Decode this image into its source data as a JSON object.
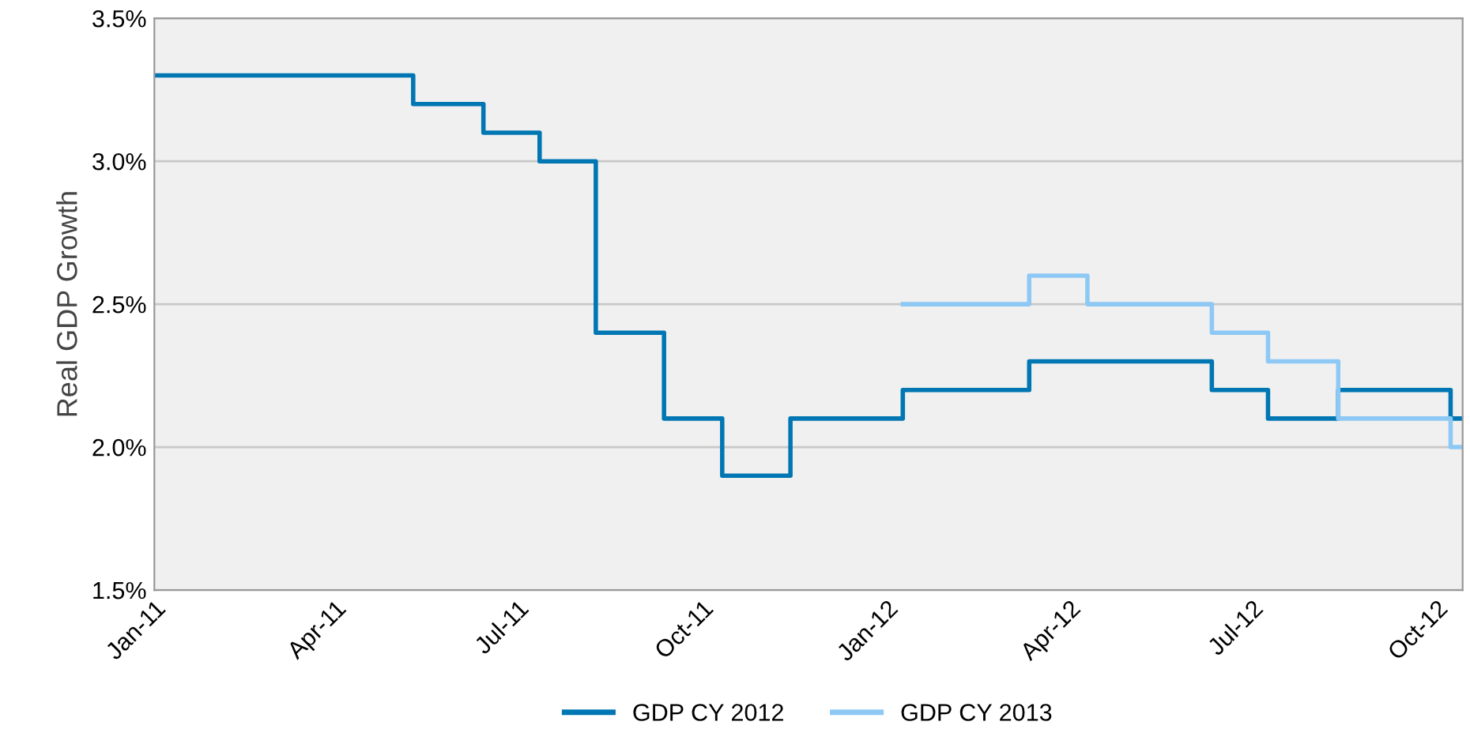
{
  "chart_data": {
    "type": "step",
    "ylabel": "Real GDP Growth",
    "xlim": [
      "2011-01-01",
      "2012-10-14"
    ],
    "xticks": [
      {
        "value": "2011-01-01",
        "label": "Jan-11"
      },
      {
        "value": "2011-04-01",
        "label": "Apr-11"
      },
      {
        "value": "2011-07-01",
        "label": "Jul-11"
      },
      {
        "value": "2011-10-01",
        "label": "Oct-11"
      },
      {
        "value": "2012-01-01",
        "label": "Jan-12"
      },
      {
        "value": "2012-04-01",
        "label": "Apr-12"
      },
      {
        "value": "2012-07-01",
        "label": "Jul-12"
      },
      {
        "value": "2012-10-01",
        "label": "Oct-12"
      }
    ],
    "ylim": [
      1.5,
      3.5
    ],
    "yticks": [
      {
        "value": 1.5,
        "label": "1.5%"
      },
      {
        "value": 2.0,
        "label": "2.0%"
      },
      {
        "value": 2.5,
        "label": "2.5%"
      },
      {
        "value": 3.0,
        "label": "3.0%"
      },
      {
        "value": 3.5,
        "label": "3.5%"
      }
    ],
    "grid": "y",
    "legend": "bottom",
    "line_style": "solid",
    "marker": "none",
    "series": [
      {
        "name": "GDP CY 2012",
        "color": "#0077b3",
        "x": [
          "2011-01-01",
          "2011-05-10",
          "2011-06-14",
          "2011-07-12",
          "2011-08-09",
          "2011-09-12",
          "2011-10-11",
          "2011-11-14",
          "2012-01-09",
          "2012-03-12",
          "2012-06-11",
          "2012-07-09",
          "2012-08-13",
          "2012-10-08",
          "2012-10-14"
        ],
        "values": [
          3.3,
          3.2,
          3.1,
          3.0,
          2.4,
          2.1,
          1.9,
          2.1,
          2.2,
          2.3,
          2.2,
          2.1,
          2.2,
          2.1,
          2.1
        ]
      },
      {
        "name": "GDP CY 2013",
        "color": "#8ec8f5",
        "x": [
          "2012-01-09",
          "2012-03-12",
          "2012-04-10",
          "2012-06-11",
          "2012-07-09",
          "2012-08-13",
          "2012-10-08",
          "2012-10-14"
        ],
        "values": [
          2.5,
          2.6,
          2.5,
          2.4,
          2.3,
          2.1,
          2.0,
          2.0
        ]
      }
    ]
  }
}
